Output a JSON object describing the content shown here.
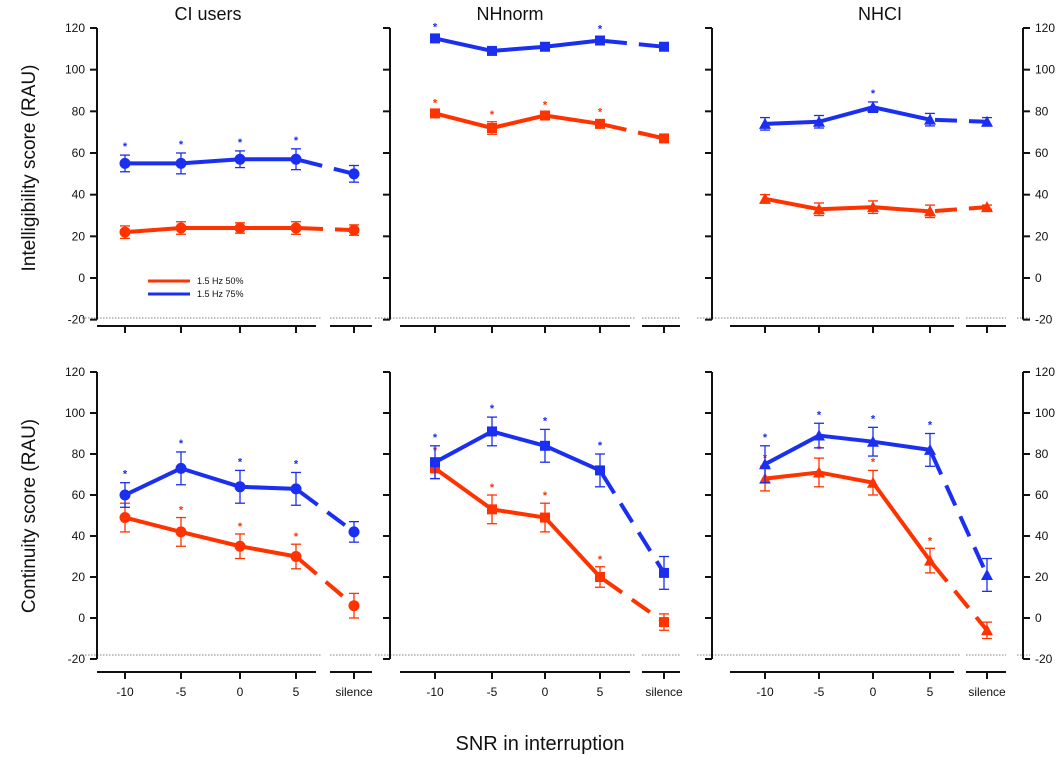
{
  "figure": {
    "ylabel_top": "Intelligibility score (RAU)",
    "ylabel_bottom": "Continuity score (RAU)",
    "xlabel": "SNR in interruption",
    "legend": [
      "1.5 Hz 50%",
      "1.5 Hz 75%"
    ],
    "colors": {
      "series50": "#ff3300",
      "series75": "#1a2ff0"
    }
  },
  "chart_data": [
    {
      "type": "line",
      "panel": "CI users",
      "metric": "Intelligibility",
      "title": "CI users",
      "categories": [
        "-10",
        "-5",
        "0",
        "5",
        "silence"
      ],
      "ylim": [
        -20,
        120
      ],
      "marker": "circle",
      "series": [
        {
          "name": "1.5 Hz 50%",
          "values": [
            22,
            24,
            24,
            24,
            23
          ],
          "err": [
            3,
            3,
            2.5,
            3,
            2.5
          ],
          "stars": [
            false,
            false,
            false,
            false,
            false
          ]
        },
        {
          "name": "1.5 Hz 75%",
          "values": [
            55,
            55,
            57,
            57,
            50
          ],
          "err": [
            4,
            5,
            4,
            5,
            4
          ],
          "stars": [
            true,
            true,
            true,
            true,
            false
          ]
        }
      ]
    },
    {
      "type": "line",
      "panel": "NHnorm",
      "metric": "Intelligibility",
      "title": "NHnorm",
      "categories": [
        "-10",
        "-5",
        "0",
        "5",
        "silence"
      ],
      "ylim": [
        -20,
        120
      ],
      "marker": "square",
      "series": [
        {
          "name": "1.5 Hz 50%",
          "values": [
            79,
            72,
            78,
            74,
            67
          ],
          "err": [
            1.5,
            3,
            1.5,
            2,
            1
          ],
          "stars": [
            true,
            true,
            true,
            true,
            false
          ]
        },
        {
          "name": "1.5 Hz 75%",
          "values": [
            115,
            109,
            111,
            114,
            111
          ],
          "err": [
            1.5,
            1.5,
            1.5,
            1.5,
            1
          ],
          "stars": [
            true,
            false,
            false,
            true,
            false
          ]
        }
      ]
    },
    {
      "type": "line",
      "panel": "NHCI",
      "metric": "Intelligibility",
      "title": "NHCI",
      "categories": [
        "-10",
        "-5",
        "0",
        "5",
        "silence"
      ],
      "ylim": [
        -20,
        120
      ],
      "marker": "triangle",
      "series": [
        {
          "name": "1.5 Hz 50%",
          "values": [
            38,
            33,
            34,
            32,
            34
          ],
          "err": [
            2,
            3,
            3,
            3,
            1
          ],
          "stars": [
            false,
            false,
            false,
            false,
            false
          ]
        },
        {
          "name": "1.5 Hz 75%",
          "values": [
            74,
            75,
            82,
            76,
            75
          ],
          "err": [
            3,
            3,
            2.5,
            3,
            2
          ],
          "stars": [
            false,
            false,
            true,
            false,
            false
          ]
        }
      ]
    },
    {
      "type": "line",
      "panel": "CI users",
      "metric": "Continuity",
      "categories": [
        "-10",
        "-5",
        "0",
        "5",
        "silence"
      ],
      "ylim": [
        -20,
        120
      ],
      "marker": "circle",
      "series": [
        {
          "name": "1.5 Hz 50%",
          "values": [
            49,
            42,
            35,
            30,
            6
          ],
          "err": [
            7,
            7,
            6,
            6,
            6
          ],
          "stars": [
            true,
            true,
            true,
            true,
            false
          ]
        },
        {
          "name": "1.5 Hz 75%",
          "values": [
            60,
            73,
            64,
            63,
            42
          ],
          "err": [
            6,
            8,
            8,
            8,
            5
          ],
          "stars": [
            true,
            true,
            true,
            true,
            false
          ]
        }
      ]
    },
    {
      "type": "line",
      "panel": "NHnorm",
      "metric": "Continuity",
      "categories": [
        "-10",
        "-5",
        "0",
        "5",
        "silence"
      ],
      "ylim": [
        -20,
        120
      ],
      "marker": "square",
      "series": [
        {
          "name": "1.5 Hz 50%",
          "values": [
            73,
            53,
            49,
            20,
            -2
          ],
          "err": [
            5,
            7,
            7,
            5,
            4
          ],
          "stars": [
            true,
            true,
            true,
            true,
            false
          ]
        },
        {
          "name": "1.5 Hz 75%",
          "values": [
            76,
            91,
            84,
            72,
            22
          ],
          "err": [
            8,
            7,
            8,
            8,
            8
          ],
          "stars": [
            true,
            true,
            true,
            true,
            false
          ]
        }
      ]
    },
    {
      "type": "line",
      "panel": "NHCI",
      "metric": "Continuity",
      "categories": [
        "-10",
        "-5",
        "0",
        "5",
        "silence"
      ],
      "ylim": [
        -20,
        120
      ],
      "marker": "triangle",
      "series": [
        {
          "name": "1.5 Hz 50%",
          "values": [
            68,
            71,
            66,
            28,
            -6
          ],
          "err": [
            6,
            7,
            6,
            6,
            4
          ],
          "stars": [
            true,
            true,
            true,
            true,
            false
          ]
        },
        {
          "name": "1.5 Hz 75%",
          "values": [
            75,
            89,
            86,
            82,
            21
          ],
          "err": [
            9,
            6,
            7,
            8,
            8
          ],
          "stars": [
            true,
            true,
            true,
            true,
            false
          ]
        }
      ]
    }
  ]
}
